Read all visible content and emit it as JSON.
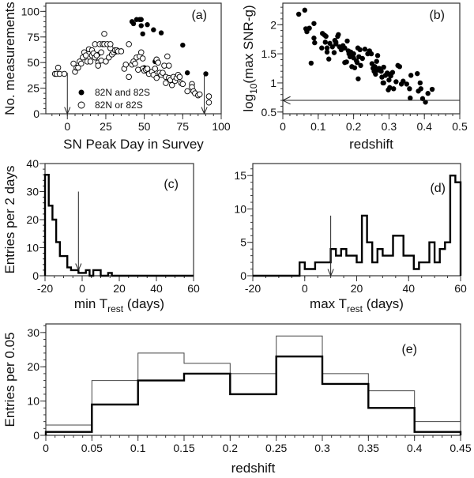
{
  "chart_data": [
    {
      "id": "a",
      "type": "scatter",
      "panel_label": "(a)",
      "xlabel": "SN Peak Day in Survey",
      "ylabel": "No. measurements",
      "xlim": [
        -14,
        100
      ],
      "ylim": [
        0,
        108
      ],
      "xticks": [
        0,
        25,
        50,
        75,
        100
      ],
      "yticks": [
        0,
        25,
        50,
        75,
        100
      ],
      "legend": {
        "placement": "bottom-center",
        "entries": [
          "82N and 82S",
          "82N or 82S"
        ]
      },
      "series": [
        {
          "name": "82N and 82S",
          "marker": "filled-circle",
          "points": [
            [
              42,
              90
            ],
            [
              43,
              88
            ],
            [
              45,
              92
            ],
            [
              47,
              92
            ],
            [
              48,
              92
            ],
            [
              48,
              86
            ],
            [
              49,
              78
            ],
            [
              52,
              87
            ],
            [
              56,
              82
            ],
            [
              61,
              79
            ],
            [
              75,
              67
            ],
            [
              78,
              40
            ],
            [
              90,
              39
            ],
            [
              57,
              51
            ],
            [
              50,
              45
            ],
            [
              31,
              60
            ],
            [
              20,
              58
            ]
          ]
        },
        {
          "name": "82N or 82S",
          "marker": "open-circle",
          "points": [
            [
              -8,
              39
            ],
            [
              -7,
              39
            ],
            [
              -6,
              45
            ],
            [
              -5,
              39
            ],
            [
              -2,
              39
            ],
            [
              4,
              49
            ],
            [
              5,
              41
            ],
            [
              6,
              45
            ],
            [
              7,
              45
            ],
            [
              8,
              51
            ],
            [
              9,
              49
            ],
            [
              10,
              55
            ],
            [
              11,
              60
            ],
            [
              12,
              57
            ],
            [
              13,
              51
            ],
            [
              14,
              63
            ],
            [
              15,
              51
            ],
            [
              16,
              62
            ],
            [
              16,
              57
            ],
            [
              17,
              59
            ],
            [
              18,
              68
            ],
            [
              18,
              55
            ],
            [
              19,
              57
            ],
            [
              20,
              50
            ],
            [
              20,
              47
            ],
            [
              21,
              68
            ],
            [
              22,
              52
            ],
            [
              22,
              60
            ],
            [
              23,
              68
            ],
            [
              24,
              78
            ],
            [
              24,
              68
            ],
            [
              25,
              51
            ],
            [
              26,
              68
            ],
            [
              27,
              55
            ],
            [
              28,
              64
            ],
            [
              28,
              68
            ],
            [
              29,
              58
            ],
            [
              30,
              60
            ],
            [
              31,
              62
            ],
            [
              32,
              62
            ],
            [
              33,
              61
            ],
            [
              35,
              61
            ],
            [
              37,
              44
            ],
            [
              38,
              48
            ],
            [
              40,
              68
            ],
            [
              40,
              36
            ],
            [
              42,
              48
            ],
            [
              43,
              51
            ],
            [
              44,
              49
            ],
            [
              45,
              55
            ],
            [
              46,
              43
            ],
            [
              47,
              56
            ],
            [
              48,
              60
            ],
            [
              49,
              54
            ],
            [
              49,
              44
            ],
            [
              50,
              42
            ],
            [
              51,
              43
            ],
            [
              52,
              44
            ],
            [
              53,
              39
            ],
            [
              55,
              41
            ],
            [
              56,
              38
            ],
            [
              57,
              44
            ],
            [
              58,
              35
            ],
            [
              58,
              53
            ],
            [
              59,
              50
            ],
            [
              60,
              40
            ],
            [
              61,
              38
            ],
            [
              62,
              40
            ],
            [
              63,
              47
            ],
            [
              64,
              36
            ],
            [
              64,
              30
            ],
            [
              65,
              56
            ],
            [
              66,
              47
            ],
            [
              66,
              35
            ],
            [
              67,
              33
            ],
            [
              68,
              28
            ],
            [
              69,
              36
            ],
            [
              70,
              32
            ],
            [
              71,
              35
            ],
            [
              72,
              38
            ],
            [
              73,
              36
            ],
            [
              74,
              30
            ],
            [
              75,
              29
            ],
            [
              78,
              22
            ],
            [
              81,
              29
            ],
            [
              81,
              26
            ],
            [
              82,
              22
            ],
            [
              83,
              20
            ],
            [
              85,
              18
            ],
            [
              86,
              19
            ],
            [
              92,
              17
            ],
            [
              92,
              11
            ]
          ]
        }
      ],
      "arrows": [
        {
          "x": 0,
          "from": 40,
          "to": 0
        },
        {
          "x": 89,
          "from": 40,
          "to": 0
        }
      ]
    },
    {
      "id": "b",
      "type": "scatter",
      "panel_label": "(b)",
      "xlabel": "redshift",
      "ylabel": {
        "main": "log",
        "sub": "10",
        "rest": "(max SNR-g)"
      },
      "xlim": [
        0,
        0.5
      ],
      "ylim": [
        0.47,
        2.37
      ],
      "xticks": [
        0,
        0.1,
        0.2,
        0.3,
        0.4,
        0.5
      ],
      "yticks": [
        0.5,
        1,
        1.5,
        2
      ],
      "series": [
        {
          "marker": "filled-circle",
          "points": [
            [
              0.045,
              2.18
            ],
            [
              0.062,
              2.25
            ],
            [
              0.065,
              1.93
            ],
            [
              0.068,
              1.88
            ],
            [
              0.075,
              1.94
            ],
            [
              0.08,
              1.34
            ],
            [
              0.088,
              2.02
            ],
            [
              0.088,
              1.77
            ],
            [
              0.09,
              1.69
            ],
            [
              0.11,
              1.6
            ],
            [
              0.112,
              1.85
            ],
            [
              0.118,
              1.82
            ],
            [
              0.12,
              1.7
            ],
            [
              0.122,
              1.8
            ],
            [
              0.125,
              1.6
            ],
            [
              0.125,
              1.53
            ],
            [
              0.13,
              1.41
            ],
            [
              0.133,
              1.68
            ],
            [
              0.14,
              1.62
            ],
            [
              0.145,
              1.52
            ],
            [
              0.147,
              1.73
            ],
            [
              0.15,
              1.67
            ],
            [
              0.15,
              1.7
            ],
            [
              0.155,
              1.8
            ],
            [
              0.157,
              1.83
            ],
            [
              0.16,
              1.62
            ],
            [
              0.165,
              1.57
            ],
            [
              0.17,
              1.64
            ],
            [
              0.175,
              1.35
            ],
            [
              0.175,
              1.6
            ],
            [
              0.18,
              1.36
            ],
            [
              0.182,
              1.72
            ],
            [
              0.185,
              1.55
            ],
            [
              0.187,
              1.5
            ],
            [
              0.19,
              1.45
            ],
            [
              0.192,
              1.53
            ],
            [
              0.195,
              1.28
            ],
            [
              0.2,
              1.43
            ],
            [
              0.2,
              1.5
            ],
            [
              0.203,
              1.26
            ],
            [
              0.208,
              1.38
            ],
            [
              0.21,
              1.35
            ],
            [
              0.212,
              1.6
            ],
            [
              0.213,
              1.07
            ],
            [
              0.215,
              1.45
            ],
            [
              0.218,
              1.57
            ],
            [
              0.22,
              1.3
            ],
            [
              0.225,
              1.42
            ],
            [
              0.232,
              1.58
            ],
            [
              0.24,
              1.5
            ],
            [
              0.245,
              1.55
            ],
            [
              0.25,
              1.5
            ],
            [
              0.252,
              1.33
            ],
            [
              0.255,
              1.25
            ],
            [
              0.258,
              1.2
            ],
            [
              0.26,
              1.28
            ],
            [
              0.26,
              1.22
            ],
            [
              0.262,
              1.15
            ],
            [
              0.265,
              1.37
            ],
            [
              0.268,
              1.47
            ],
            [
              0.27,
              1.22
            ],
            [
              0.272,
              1.25
            ],
            [
              0.278,
              1.2
            ],
            [
              0.28,
              1.1
            ],
            [
              0.283,
              1.0
            ],
            [
              0.285,
              1.27
            ],
            [
              0.285,
              1.0
            ],
            [
              0.29,
              1.13
            ],
            [
              0.295,
              1.17
            ],
            [
              0.298,
              0.88
            ],
            [
              0.3,
              1.05
            ],
            [
              0.3,
              1.15
            ],
            [
              0.302,
              0.92
            ],
            [
              0.305,
              1.12
            ],
            [
              0.31,
              1.18
            ],
            [
              0.313,
              0.9
            ],
            [
              0.32,
              1.02
            ],
            [
              0.325,
              1.3
            ],
            [
              0.33,
              1.28
            ],
            [
              0.335,
              0.98
            ],
            [
              0.34,
              1.03
            ],
            [
              0.35,
              0.98
            ],
            [
              0.358,
              0.9
            ],
            [
              0.36,
              0.74
            ],
            [
              0.362,
              1.13
            ],
            [
              0.38,
              1.16
            ],
            [
              0.383,
              0.86
            ],
            [
              0.388,
              1.0
            ],
            [
              0.39,
              0.9
            ],
            [
              0.395,
              0.73
            ],
            [
              0.403,
              0.67
            ],
            [
              0.41,
              0.82
            ],
            [
              0.422,
              0.89
            ]
          ]
        }
      ],
      "hline": {
        "y": 0.7,
        "arrow": "left"
      }
    },
    {
      "id": "c",
      "type": "histogram",
      "panel_label": "(c)",
      "xlabel": {
        "main": "min T",
        "sub": "rest",
        "rest": " (days)"
      },
      "ylabel": "Entries per 2 days",
      "xlim": [
        -20,
        60
      ],
      "ylim": [
        0,
        40
      ],
      "bin_width": 2,
      "xticks": [
        -20,
        0,
        20,
        40,
        60
      ],
      "yticks": [
        0,
        10,
        20,
        30,
        40
      ],
      "bin_start": -20,
      "values": [
        36,
        25,
        20,
        12,
        7,
        7,
        3,
        2,
        2,
        1,
        1,
        2,
        0,
        2,
        2,
        0,
        0,
        1
      ],
      "arrow": {
        "x": -2,
        "from": 30,
        "to": 2
      }
    },
    {
      "id": "d",
      "type": "histogram",
      "panel_label": "(d)",
      "xlabel": {
        "main": "max T",
        "sub": "rest",
        "rest": " (days)"
      },
      "ylabel": "",
      "xlim": [
        -20,
        60
      ],
      "ylim": [
        0,
        16.8
      ],
      "bin_width": 2,
      "xticks": [
        -20,
        0,
        20,
        40,
        60
      ],
      "yticks": [
        0,
        5,
        10,
        15
      ],
      "bin_start": -2,
      "values": [
        2,
        1,
        1,
        2,
        2,
        2,
        4,
        3,
        4,
        3,
        3,
        2,
        9,
        5,
        2,
        4,
        3,
        3,
        6,
        6,
        3,
        3,
        1,
        2,
        2,
        5,
        2,
        4,
        5,
        15,
        14
      ],
      "arrow": {
        "x": 10,
        "from": 9,
        "to": 0
      }
    },
    {
      "id": "e",
      "type": "histogram",
      "panel_label": "(e)",
      "xlabel": "redshift",
      "ylabel": "Entries per 0.05",
      "xlim": [
        0,
        0.45
      ],
      "ylim": [
        0,
        32.5
      ],
      "bin_width": 0.05,
      "xticks": [
        0,
        0.05,
        0.1,
        0.15,
        0.2,
        0.25,
        0.3,
        0.35,
        0.4,
        0.45
      ],
      "yticks": [
        0,
        10,
        20,
        30
      ],
      "bin_start": 0,
      "series": [
        {
          "style": "thin",
          "values": [
            3,
            16,
            24,
            21,
            18,
            29,
            18,
            13,
            4
          ]
        },
        {
          "style": "thick",
          "values": [
            1,
            9,
            16,
            18,
            12,
            23,
            15,
            8,
            1
          ]
        }
      ]
    }
  ]
}
